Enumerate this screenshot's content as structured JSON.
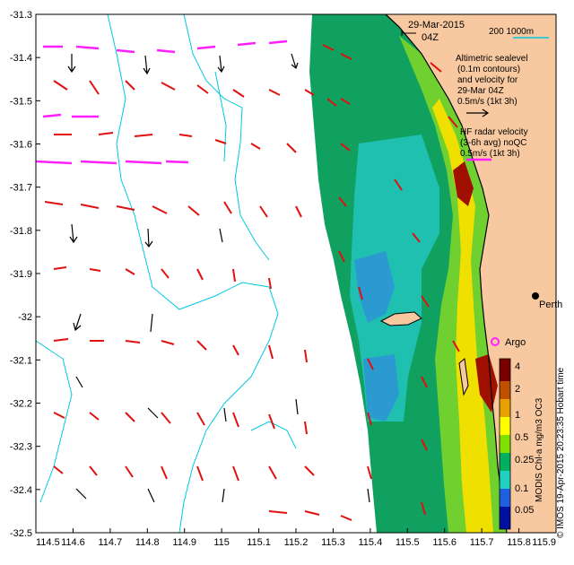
{
  "header": {
    "date": "29-Mar-2015",
    "time": "04Z"
  },
  "scale_bar": {
    "label": "200  1000m"
  },
  "legend": {
    "altimetric": [
      "Altimetric sealevel",
      "(0.1m contours)",
      "and velocity for",
      "29-Mar 04Z",
      "0.5m/s (1kt 3h)"
    ],
    "hf_radar": [
      "HF radar velocity",
      "(3-6h avg) noQC",
      "0.5m/s (1kt 3h)"
    ]
  },
  "places": {
    "city": "Perth",
    "float": "Argo"
  },
  "axes": {
    "x_ticks": [
      "114.5",
      "114.6",
      "114.7",
      "114.8",
      "114.9",
      "115",
      "115.1",
      "115.2",
      "115.3",
      "115.4",
      "115.5",
      "115.6",
      "115.7",
      "115.8",
      "115.9"
    ],
    "y_ticks": [
      "-31.3",
      "-31.4",
      "-31.5",
      "-31.6",
      "-31.7",
      "-31.8",
      "-31.9",
      "-32",
      "-32.1",
      "-32.2",
      "-32.3",
      "-32.4",
      "-32.5"
    ],
    "lon_range": [
      114.5,
      115.9
    ],
    "lat_range": [
      -32.5,
      -31.3
    ]
  },
  "colorbar": {
    "label": "MODIS Chl-a mg/m3 OC3",
    "ticks": [
      "4",
      "2",
      "1",
      "0.5",
      "0.25",
      "0.1",
      "0.05"
    ],
    "colors": [
      "#7a0000",
      "#c05000",
      "#e6a000",
      "#ffff00",
      "#80e000",
      "#00b060",
      "#20d0c0",
      "#2060e0",
      "#0010a0"
    ]
  },
  "credit": "© IMOS 19-Apr-2015 20:23:35 Hobart time"
}
